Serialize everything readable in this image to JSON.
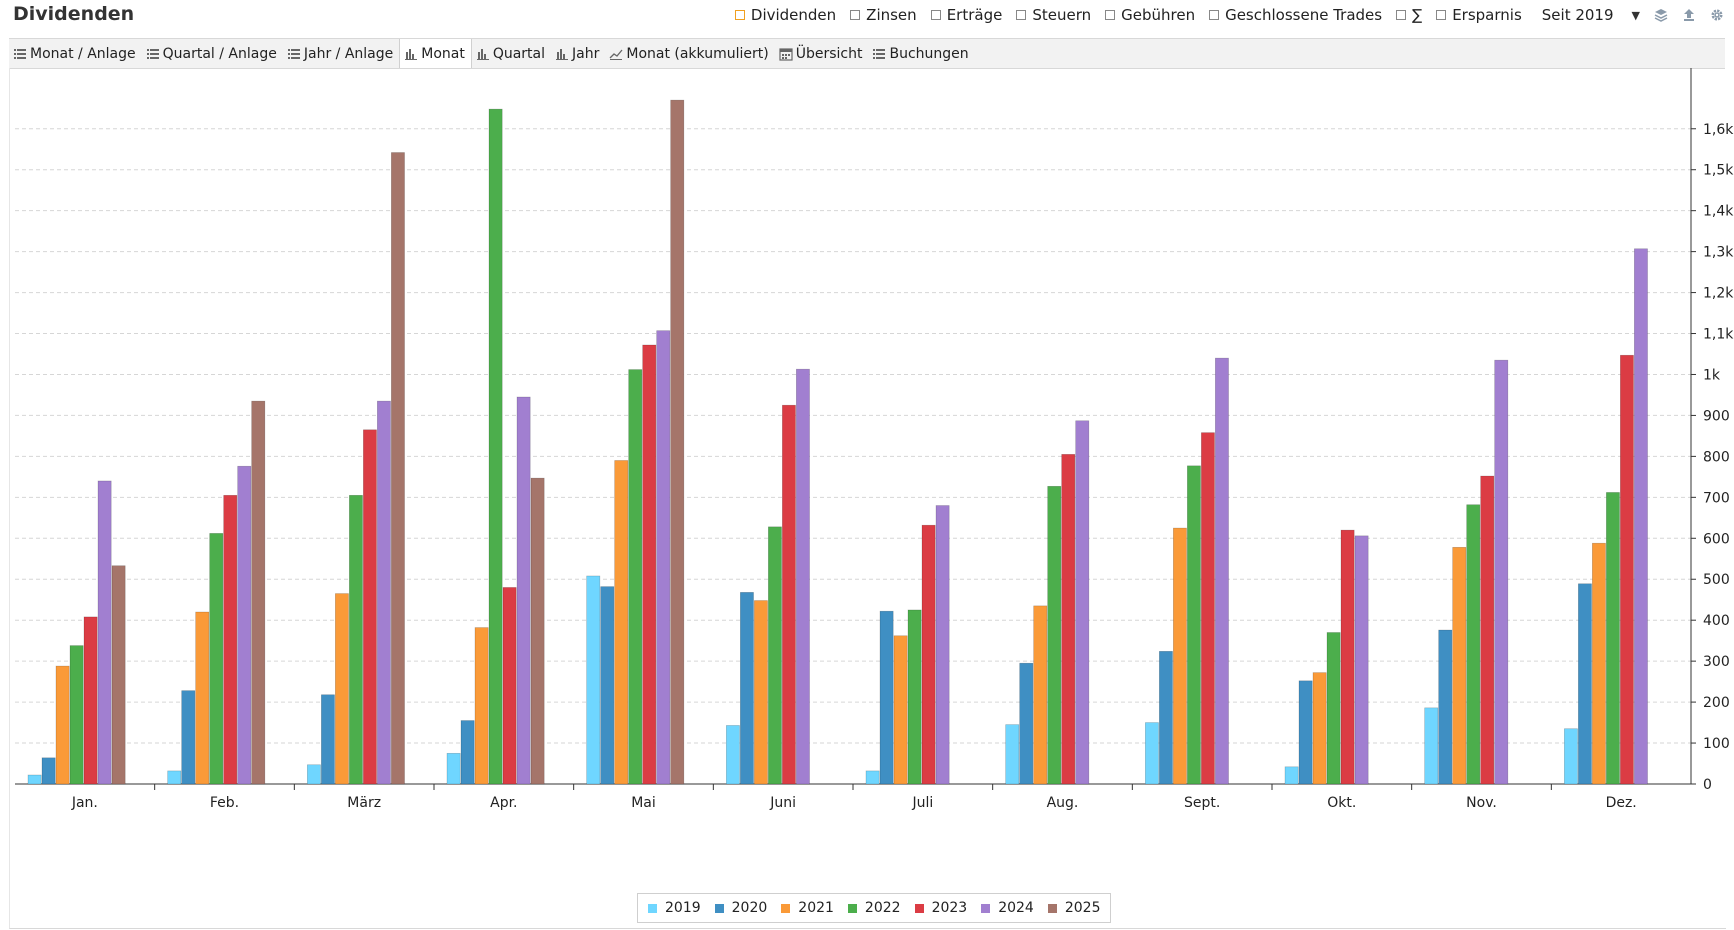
{
  "header": {
    "title": "Dividenden",
    "filters": [
      {
        "label": "Dividenden",
        "checked": true
      },
      {
        "label": "Zinsen",
        "checked": false
      },
      {
        "label": "Erträge",
        "checked": false
      },
      {
        "label": "Steuern",
        "checked": false
      },
      {
        "label": "Gebühren",
        "checked": false
      },
      {
        "label": "Geschlossene Trades",
        "checked": false
      },
      {
        "label": "∑",
        "checked": false
      },
      {
        "label": "Ersparnis",
        "checked": false
      }
    ],
    "period": "Seit 2019",
    "icons": [
      "layers-icon",
      "export-icon",
      "gear-icon"
    ]
  },
  "tabs": [
    {
      "label": "Monat / Anlage",
      "icon": "list-icon",
      "active": false
    },
    {
      "label": "Quartal / Anlage",
      "icon": "list-icon",
      "active": false
    },
    {
      "label": "Jahr / Anlage",
      "icon": "list-icon",
      "active": false
    },
    {
      "label": "Monat",
      "icon": "bar-chart-icon",
      "active": true
    },
    {
      "label": "Quartal",
      "icon": "bar-chart-icon",
      "active": false
    },
    {
      "label": "Jahr",
      "icon": "bar-chart-icon",
      "active": false
    },
    {
      "label": "Monat (akkumuliert)",
      "icon": "line-chart-icon",
      "active": false
    },
    {
      "label": "Übersicht",
      "icon": "calendar-icon",
      "active": false
    },
    {
      "label": "Buchungen",
      "icon": "list-icon",
      "active": false
    }
  ],
  "chart_data": {
    "type": "bar",
    "title": "",
    "xlabel": "",
    "ylabel": "",
    "ylim": [
      0,
      1680
    ],
    "grid": true,
    "legend_position": "bottom-center",
    "y_axis_side": "right",
    "y_ticks": [
      0,
      100,
      200,
      300,
      400,
      500,
      600,
      700,
      800,
      900,
      1000,
      1100,
      1200,
      1300,
      1400,
      1500,
      1600
    ],
    "y_tick_labels": [
      "0",
      "100",
      "200",
      "300",
      "400",
      "500",
      "600",
      "700",
      "800",
      "900",
      "1k",
      "1,1k",
      "1,2k",
      "1,3k",
      "1,4k",
      "1,5k",
      "1,6k"
    ],
    "categories": [
      "Jan.",
      "Feb.",
      "März",
      "Apr.",
      "Mai",
      "Juni",
      "Juli",
      "Aug.",
      "Sept.",
      "Okt.",
      "Nov.",
      "Dez."
    ],
    "series": [
      {
        "name": "2019",
        "color": "#6fd6ff",
        "values": [
          22,
          32,
          47,
          75,
          508,
          143,
          32,
          145,
          150,
          42,
          186,
          135
        ]
      },
      {
        "name": "2020",
        "color": "#3f8fc3",
        "values": [
          64,
          228,
          218,
          155,
          482,
          468,
          422,
          295,
          324,
          252,
          376,
          489
        ]
      },
      {
        "name": "2021",
        "color": "#fa9a38",
        "values": [
          288,
          420,
          465,
          382,
          790,
          448,
          362,
          435,
          625,
          272,
          578,
          588
        ]
      },
      {
        "name": "2022",
        "color": "#4cae4c",
        "values": [
          338,
          612,
          705,
          1648,
          1012,
          628,
          425,
          727,
          777,
          370,
          682,
          712
        ]
      },
      {
        "name": "2023",
        "color": "#db3c44",
        "values": [
          408,
          705,
          865,
          480,
          1072,
          925,
          632,
          805,
          858,
          620,
          752,
          1047
        ]
      },
      {
        "name": "2024",
        "color": "#a17fd0",
        "values": [
          740,
          776,
          935,
          945,
          1107,
          1013,
          680,
          887,
          1040,
          606,
          1035,
          1307
        ]
      },
      {
        "name": "2025",
        "color": "#a5756a",
        "values": [
          533,
          935,
          1542,
          747,
          1670,
          null,
          null,
          null,
          null,
          null,
          null,
          null
        ]
      }
    ]
  }
}
